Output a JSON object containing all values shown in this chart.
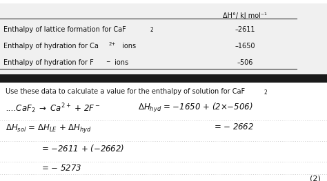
{
  "table_header": "ΔH°/ kJ mol⁻¹",
  "table_rows": [
    [
      "Enthalpy of lattice formation for CaF₂",
      "–2611"
    ],
    [
      "Enthalpy of hydration for Ca²⁺ ions",
      "–1650"
    ],
    [
      "Enthalpy of hydration for F⁻ ions",
      "–506"
    ]
  ],
  "question_text": "Use these data to calculate a value for the enthalpy of solution for CaF",
  "question_subscript": "2",
  "mark": "(2)",
  "bg_color": "#ffffff",
  "table_bg": "#f0f0f0",
  "separator_color": "#333333",
  "dark_bar_color": "#1a1a1a",
  "text_color": "#111111",
  "handwritten_color": "#111111",
  "row_labels": [
    "Enthalpy of lattice formation for CaF",
    "Enthalpy of hydration for Ca",
    "Enthalpy of hydration for F"
  ],
  "row_values": [
    "–2611",
    "–1650",
    "–506"
  ]
}
